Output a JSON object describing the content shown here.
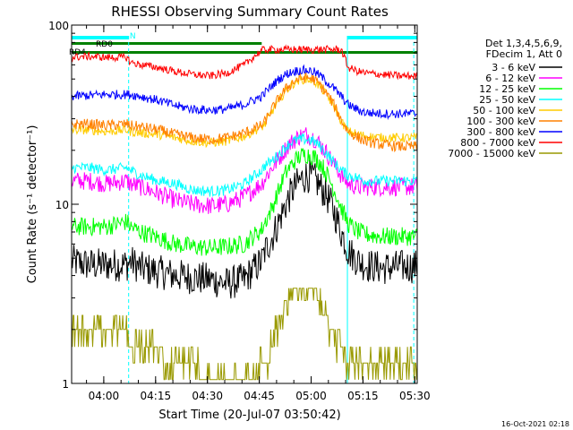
{
  "chart_data": {
    "type": "line",
    "title": "RHESSI Observing Summary Count Rates",
    "xlabel": "Start Time (20-Jul-07 03:50:42)",
    "ylabel": "Count Rate (s⁻¹ detector⁻¹)",
    "y_scale": "log",
    "ylim": [
      1,
      100
    ],
    "y_ticks": [
      {
        "value": 1,
        "label": "1"
      },
      {
        "value": 10,
        "label": "10"
      },
      {
        "value": 100,
        "label": "100"
      }
    ],
    "xlim_minutes": [
      0,
      100
    ],
    "x_ticks": [
      {
        "minute": 9.3,
        "label": "04:00"
      },
      {
        "minute": 24.3,
        "label": "04:15"
      },
      {
        "minute": 39.3,
        "label": "04:30"
      },
      {
        "minute": 54.3,
        "label": "04:45"
      },
      {
        "minute": 69.3,
        "label": "05:00"
      },
      {
        "minute": 84.3,
        "label": "05:15"
      },
      {
        "minute": 99.3,
        "label": "05:30"
      }
    ],
    "legend": {
      "position": "right",
      "header": [
        "Det 1,3,4,5,6,9,",
        "FDecim 1, Att 0"
      ]
    },
    "grid": false,
    "x_minutes": [
      0,
      5,
      10,
      16,
      17,
      20,
      25,
      30,
      35,
      40,
      45,
      50,
      55,
      56,
      58,
      60,
      62,
      64,
      66,
      68,
      70,
      72,
      74,
      76,
      78,
      80,
      83,
      85,
      90,
      95
    ],
    "series": [
      {
        "name": "3 - 6 keV",
        "color": "#000000",
        "noise": 0.22,
        "values": [
          4.8,
          4.6,
          4.6,
          4.6,
          4.8,
          4.4,
          4.2,
          4.0,
          3.9,
          3.8,
          3.6,
          3.8,
          4.8,
          5.5,
          6.5,
          8.0,
          10.0,
          12.0,
          13.5,
          14.5,
          14.0,
          12.5,
          11.0,
          9.0,
          7.0,
          5.5,
          4.8,
          4.6,
          4.4,
          4.5
        ]
      },
      {
        "name": "6 - 12 keV",
        "color": "#ff00ff",
        "noise": 0.12,
        "values": [
          13.5,
          13.5,
          13.0,
          13.5,
          13.0,
          12.5,
          11.5,
          10.5,
          10.0,
          9.8,
          10.0,
          11.0,
          13.0,
          14.0,
          16.0,
          18.0,
          20.5,
          22.5,
          24.0,
          24.5,
          23.5,
          21.5,
          19.0,
          16.5,
          14.5,
          13.0,
          12.5,
          12.5,
          12.5,
          12.5
        ]
      },
      {
        "name": "12 - 25 keV",
        "color": "#00ff00",
        "noise": 0.12,
        "values": [
          7.5,
          7.5,
          7.5,
          8.0,
          7.5,
          7.0,
          6.5,
          6.0,
          5.8,
          5.7,
          5.8,
          6.0,
          7.2,
          8.0,
          9.5,
          12.0,
          15.0,
          17.0,
          18.5,
          19.0,
          18.5,
          17.0,
          14.5,
          12.0,
          9.5,
          7.8,
          7.0,
          6.8,
          6.6,
          6.6
        ]
      },
      {
        "name": "25 - 50 keV",
        "color": "#00ffff",
        "noise": 0.07,
        "values": [
          16.0,
          16.0,
          15.5,
          16.0,
          15.5,
          14.5,
          13.5,
          13.0,
          12.0,
          11.8,
          12.0,
          13.0,
          15.5,
          16.5,
          17.5,
          19.0,
          21.0,
          22.5,
          23.0,
          23.0,
          22.5,
          21.0,
          19.0,
          17.0,
          15.5,
          14.5,
          14.0,
          13.5,
          13.5,
          13.5
        ]
      },
      {
        "name": "50 - 100 keV",
        "color": "#ffcc00",
        "noise": 0.06,
        "values": [
          26.0,
          26.0,
          25.5,
          26.0,
          25.5,
          25.0,
          24.5,
          23.5,
          22.5,
          22.0,
          22.5,
          24.0,
          27.0,
          28.0,
          33.0,
          38.0,
          43.0,
          47.0,
          49.5,
          50.0,
          49.0,
          45.0,
          40.0,
          35.0,
          29.0,
          25.5,
          24.5,
          24.0,
          23.5,
          23.5
        ]
      },
      {
        "name": "100 - 300 keV",
        "color": "#ff8000",
        "noise": 0.07,
        "values": [
          28.0,
          28.0,
          27.5,
          28.0,
          27.5,
          27.0,
          26.0,
          24.5,
          23.5,
          23.0,
          23.5,
          25.0,
          27.5,
          29.0,
          34.0,
          39.0,
          44.0,
          48.0,
          50.5,
          51.0,
          50.0,
          46.0,
          41.0,
          35.5,
          29.5,
          25.5,
          23.5,
          22.5,
          21.5,
          21.0
        ]
      },
      {
        "name": "300 - 800 keV",
        "color": "#0000ff",
        "noise": 0.06,
        "values": [
          40.0,
          40.5,
          41.0,
          41.0,
          41.0,
          40.0,
          38.0,
          35.5,
          34.0,
          33.5,
          34.0,
          36.0,
          40.0,
          42.0,
          46.0,
          50.0,
          53.0,
          55.0,
          56.0,
          56.0,
          55.0,
          52.0,
          48.0,
          44.0,
          40.0,
          36.0,
          33.5,
          32.5,
          32.0,
          32.0
        ]
      },
      {
        "name": "800 - 7000 keV",
        "color": "#ff0000",
        "noise": 0.05,
        "values": [
          66.0,
          67.0,
          66.0,
          66.0,
          62.0,
          60.0,
          58.0,
          55.0,
          53.0,
          52.0,
          54.0,
          60.0,
          72.0,
          73.0,
          73.0,
          73.0,
          73.0,
          73.0,
          73.0,
          73.0,
          73.0,
          73.0,
          73.0,
          73.0,
          73.0,
          58.0,
          55.0,
          54.0,
          53.0,
          52.0
        ]
      },
      {
        "name": "7000 - 15000 keV",
        "color": "#999900",
        "noise": 0.0,
        "values": [
          1.8,
          1.8,
          1.8,
          1.8,
          1.6,
          1.6,
          1.5,
          1.3,
          1.2,
          1.1,
          1.1,
          1.1,
          1.2,
          1.3,
          1.5,
          2.2,
          3.0,
          3.4,
          3.6,
          3.6,
          3.4,
          2.8,
          2.2,
          1.8,
          1.5,
          1.3,
          1.2,
          1.2,
          1.2,
          1.2
        ]
      }
    ],
    "flags": [
      {
        "label": "N",
        "color": "#00ffff"
      },
      {
        "label": "RD0",
        "color": "#008000"
      },
      {
        "label": "RD4",
        "color": "#008000"
      }
    ],
    "footer": "16-Oct-2021 02:18"
  }
}
